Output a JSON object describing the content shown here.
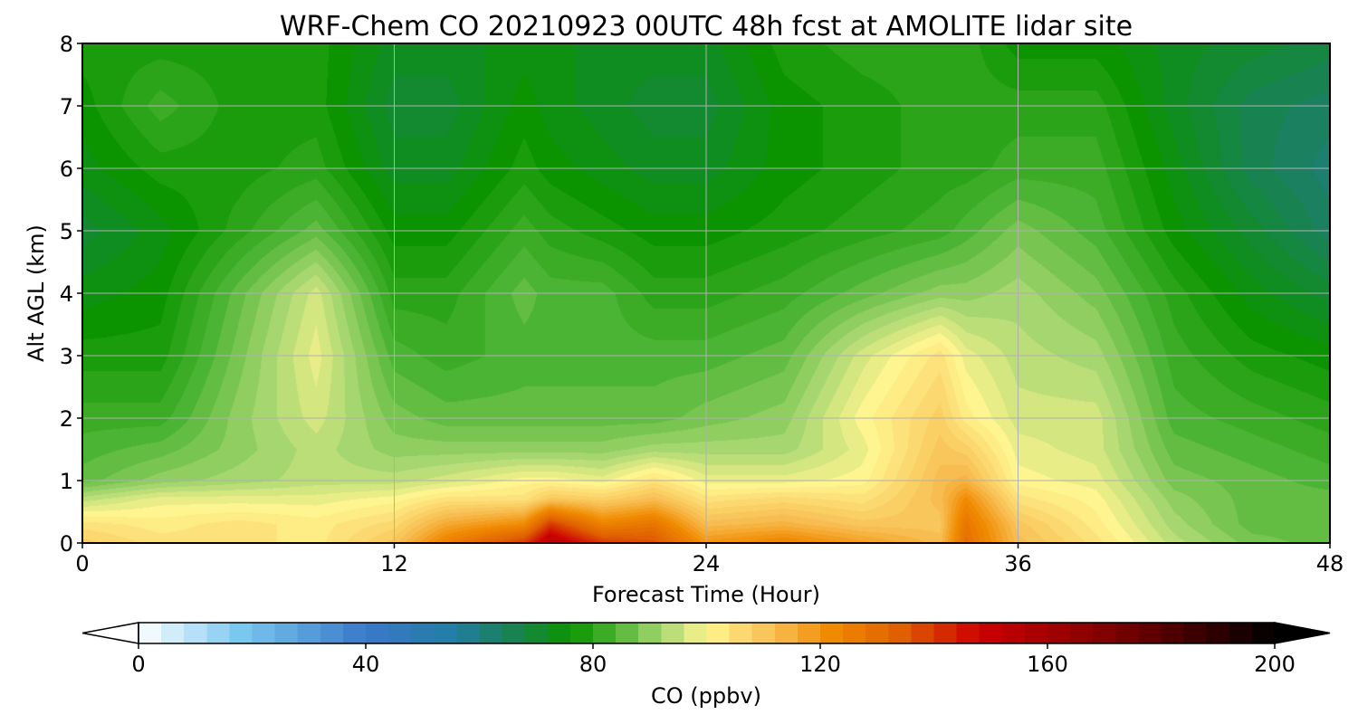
{
  "chart_data": {
    "type": "heatmap",
    "title": "WRF-Chem CO  20210923 00UTC 48h fcst at AMOLITE lidar site",
    "xlabel": "Forecast Time (Hour)",
    "ylabel": "Alt AGL (km)",
    "xlim": [
      0,
      48
    ],
    "ylim": [
      0,
      8
    ],
    "xticks": [
      0,
      12,
      24,
      36,
      48
    ],
    "yticks": [
      0,
      1,
      2,
      3,
      4,
      5,
      6,
      7,
      8
    ],
    "grid": true,
    "z_unit_note": "Approximate CO mixing ratio (ppbv) at each forecast hour (rows) and altitude level (columns).",
    "x": [
      0,
      3,
      6,
      9,
      12,
      14,
      17,
      18,
      20,
      22,
      24,
      27,
      30,
      33,
      34,
      36,
      39,
      42,
      45,
      48
    ],
    "y": [
      0,
      0.3,
      0.7,
      1,
      1.5,
      2,
      3,
      4,
      5,
      6,
      7,
      8
    ],
    "z": [
      [
        108,
        104,
        94,
        86,
        84,
        82,
        78,
        74,
        70,
        74,
        76,
        78
      ],
      [
        104,
        102,
        98,
        90,
        86,
        82,
        78,
        76,
        74,
        78,
        82,
        78
      ],
      [
        104,
        104,
        98,
        92,
        90,
        90,
        88,
        86,
        80,
        78,
        78,
        78
      ],
      [
        102,
        102,
        98,
        94,
        94,
        96,
        98,
        96,
        86,
        80,
        78,
        78
      ],
      [
        110,
        106,
        100,
        94,
        90,
        88,
        84,
        80,
        76,
        72,
        70,
        72
      ],
      [
        125,
        116,
        104,
        96,
        90,
        86,
        82,
        80,
        76,
        72,
        70,
        72
      ],
      [
        140,
        122,
        104,
        100,
        90,
        86,
        84,
        86,
        82,
        78,
        76,
        74
      ],
      [
        155,
        140,
        110,
        100,
        90,
        86,
        84,
        84,
        80,
        76,
        74,
        74
      ],
      [
        140,
        124,
        108,
        98,
        90,
        86,
        84,
        84,
        78,
        74,
        72,
        72
      ],
      [
        136,
        128,
        112,
        104,
        92,
        86,
        84,
        80,
        76,
        72,
        70,
        72
      ],
      [
        120,
        112,
        104,
        98,
        92,
        88,
        84,
        80,
        76,
        72,
        70,
        72
      ],
      [
        124,
        114,
        106,
        98,
        92,
        90,
        86,
        82,
        78,
        76,
        76,
        78
      ],
      [
        118,
        110,
        104,
        100,
        98,
        100,
        96,
        86,
        80,
        78,
        78,
        80
      ],
      [
        112,
        110,
        112,
        112,
        110,
        108,
        104,
        90,
        82,
        80,
        80,
        80
      ],
      [
        130,
        128,
        122,
        114,
        108,
        102,
        98,
        90,
        84,
        80,
        80,
        80
      ],
      [
        112,
        110,
        104,
        100,
        98,
        96,
        94,
        92,
        88,
        82,
        80,
        76
      ],
      [
        104,
        102,
        100,
        98,
        96,
        96,
        92,
        88,
        84,
        82,
        80,
        76
      ],
      [
        94,
        92,
        90,
        88,
        86,
        84,
        82,
        80,
        76,
        74,
        72,
        72
      ],
      [
        88,
        86,
        86,
        86,
        84,
        82,
        78,
        74,
        70,
        66,
        66,
        70
      ],
      [
        86,
        86,
        86,
        84,
        82,
        80,
        76,
        70,
        64,
        62,
        64,
        68
      ]
    ],
    "colorbar": {
      "label": "CO  (ppbv)",
      "min": 0,
      "max": 200,
      "ticks": [
        0,
        40,
        80,
        120,
        160,
        200
      ],
      "extend": "both",
      "color_stops": [
        {
          "value": 0,
          "color": "#ffffff"
        },
        {
          "value": 18,
          "color": "#79c8f0"
        },
        {
          "value": 40,
          "color": "#3a78c8"
        },
        {
          "value": 55,
          "color": "#237da8"
        },
        {
          "value": 64,
          "color": "#1a8060"
        },
        {
          "value": 76,
          "color": "#0b9400"
        },
        {
          "value": 84,
          "color": "#4cb434"
        },
        {
          "value": 92,
          "color": "#a6d670"
        },
        {
          "value": 100,
          "color": "#fff590"
        },
        {
          "value": 112,
          "color": "#f8bd50"
        },
        {
          "value": 122,
          "color": "#f08a00"
        },
        {
          "value": 134,
          "color": "#e06000"
        },
        {
          "value": 148,
          "color": "#cc0000"
        },
        {
          "value": 172,
          "color": "#7a0000"
        },
        {
          "value": 200,
          "color": "#000000"
        }
      ]
    }
  }
}
